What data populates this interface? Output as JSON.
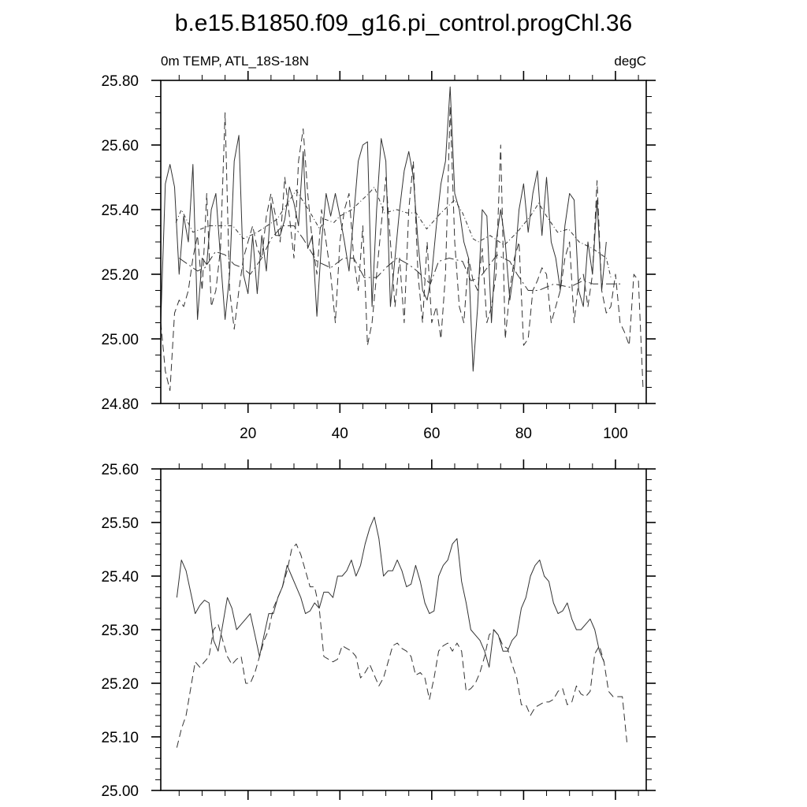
{
  "chart_data": [
    {
      "type": "line",
      "title": "b.e15.B1850.f09_g16.pi_control.progChl.36",
      "left_subtitle": "0m TEMP, ATL_18S-18N",
      "right_subtitle": "degC",
      "xlim": [
        1,
        106.7
      ],
      "ylim": [
        24.8,
        25.8
      ],
      "x_ticks": [
        20,
        40,
        60,
        80,
        100
      ],
      "x_tick_labels": [
        "20",
        "40",
        "60",
        "80",
        "100"
      ],
      "y_ticks": [
        24.8,
        25.0,
        25.2,
        25.4,
        25.6,
        25.8
      ],
      "y_tick_labels": [
        "24.80",
        "25.00",
        "25.20",
        "25.40",
        "25.60",
        "25.80"
      ],
      "series": [
        {
          "name": "solid",
          "style": "solid",
          "x_start": 1,
          "values": [
            25.05,
            25.48,
            25.54,
            25.47,
            25.2,
            25.38,
            25.3,
            25.54,
            25.06,
            25.25,
            25.23,
            25.4,
            25.45,
            25.25,
            25.06,
            25.2,
            25.55,
            25.63,
            25.2,
            25.14,
            25.32,
            25.14,
            25.32,
            25.21,
            25.42,
            25.32,
            25.32,
            25.37,
            25.47,
            25.42,
            25.35,
            25.58,
            25.28,
            25.32,
            25.07,
            25.3,
            25.45,
            25.38,
            25.45,
            25.38,
            25.3,
            25.21,
            25.38,
            25.55,
            25.6,
            25.61,
            25.1,
            25.4,
            25.62,
            25.55,
            25.1,
            25.25,
            25.4,
            25.52,
            25.58,
            25.5,
            25.3,
            25.15,
            25.12,
            25.2,
            25.35,
            25.48,
            25.55,
            25.78,
            25.45,
            25.4,
            25.3,
            25.25,
            24.9,
            25.1,
            25.4,
            25.38,
            25.05,
            25.3,
            25.4,
            25.3,
            25.12,
            25.22,
            25.4,
            25.48,
            25.33,
            25.45,
            25.52,
            25.32,
            25.5,
            25.3,
            25.25,
            25.15,
            25.35,
            25.45,
            25.43,
            25.15,
            25.1,
            25.3,
            25.2,
            25.43,
            25.15,
            25.3
          ]
        },
        {
          "name": "dashed",
          "style": "dashed",
          "x_start": 1,
          "values": [
            25.05,
            24.9,
            24.84,
            25.08,
            25.12,
            25.1,
            25.15,
            25.25,
            25.32,
            25.15,
            25.45,
            25.1,
            25.15,
            25.28,
            25.7,
            25.15,
            25.03,
            25.15,
            25.25,
            25.3,
            25.35,
            25.28,
            25.25,
            25.38,
            25.45,
            25.38,
            25.3,
            25.5,
            25.38,
            25.25,
            25.55,
            25.65,
            25.45,
            25.3,
            25.2,
            25.4,
            25.3,
            25.2,
            25.05,
            25.3,
            25.4,
            25.45,
            25.25,
            25.15,
            25.35,
            24.98,
            25.05,
            25.2,
            25.35,
            25.5,
            25.3,
            25.1,
            25.25,
            25.05,
            25.4,
            25.55,
            25.2,
            25.05,
            25.3,
            25.05,
            25.1,
            25.0,
            25.2,
            25.72,
            25.3,
            25.1,
            25.05,
            25.25,
            25.18,
            25.15,
            25.28,
            25.05,
            25.1,
            25.2,
            25.6,
            25.0,
            25.15,
            25.25,
            25.3,
            24.98,
            25.0,
            25.15,
            25.18,
            25.22,
            25.2,
            25.05,
            25.1,
            25.15,
            25.25,
            25.3,
            25.05,
            25.18,
            25.2,
            25.1,
            25.2,
            25.49,
            25.15,
            25.08,
            25.1,
            25.2,
            25.05,
            25.02,
            24.98,
            25.2,
            25.18,
            24.85
          ]
        },
        {
          "name": "dash-dot smooth",
          "style": "dashdot",
          "x": [
            4.3,
            5.5,
            8,
            11.5,
            16.7,
            19,
            22,
            26.3,
            30.5,
            34,
            35.6,
            36.8,
            38.7,
            40,
            42.6,
            46.3,
            47.5,
            49.7,
            52.4,
            54.6,
            56.6,
            58.9,
            62,
            65,
            66.7,
            69,
            70.1,
            72.7,
            75.8,
            78.6,
            81.5,
            83.3,
            85,
            87.4,
            89.8,
            92.1,
            95,
            98,
            99
          ],
          "values": [
            25.36,
            25.4,
            25.33,
            25.35,
            25.35,
            25.31,
            25.33,
            25.37,
            25.46,
            25.38,
            25.34,
            25.37,
            25.36,
            25.38,
            25.4,
            25.45,
            25.47,
            25.39,
            25.4,
            25.39,
            25.39,
            25.34,
            25.39,
            25.43,
            25.39,
            25.31,
            25.3,
            25.32,
            25.29,
            25.33,
            25.38,
            25.42,
            25.38,
            25.33,
            25.34,
            25.3,
            25.28,
            25.25,
            25.19
          ]
        },
        {
          "name": "long-dash smooth",
          "style": "longdash",
          "x": [
            5,
            9,
            10.6,
            12.9,
            15,
            17,
            18.8,
            20.5,
            23,
            25,
            27.5,
            30,
            32,
            35,
            38,
            40.8,
            43,
            45.3,
            48,
            50,
            52.5,
            55,
            56.8,
            59.7,
            61.5,
            63.8,
            66.7,
            68.5,
            70.5,
            74.2,
            77,
            78.6,
            81,
            83.3,
            86.6,
            90,
            92.9,
            95.2,
            98.6,
            101.5
          ],
          "values": [
            25.25,
            25.21,
            25.22,
            25.27,
            25.26,
            25.23,
            25.22,
            25.2,
            25.25,
            25.31,
            25.35,
            25.35,
            25.31,
            25.24,
            25.22,
            25.25,
            25.25,
            25.19,
            25.19,
            25.22,
            25.25,
            25.23,
            25.21,
            25.17,
            25.24,
            25.25,
            25.24,
            25.18,
            25.19,
            25.26,
            25.24,
            25.2,
            25.15,
            25.15,
            25.17,
            25.16,
            25.18,
            25.17,
            25.17,
            25.17
          ]
        }
      ]
    },
    {
      "type": "line",
      "xlim": [
        1,
        106.7
      ],
      "ylim": [
        25.0,
        25.6
      ],
      "x_ticks": [
        20,
        40,
        60,
        80,
        100
      ],
      "y_ticks": [
        25.0,
        25.1,
        25.2,
        25.3,
        25.4,
        25.5,
        25.6
      ],
      "y_tick_labels": [
        "25.00",
        "25.10",
        "25.20",
        "25.30",
        "25.40",
        "25.50",
        "25.60"
      ],
      "series": [
        {
          "name": "solid",
          "style": "solid",
          "x_start": 4.5,
          "values": [
            25.36,
            25.43,
            25.41,
            25.37,
            25.33,
            25.345,
            25.355,
            25.35,
            25.28,
            25.26,
            25.31,
            25.36,
            25.34,
            25.3,
            25.31,
            25.32,
            25.33,
            25.29,
            25.25,
            25.29,
            25.33,
            25.33,
            25.36,
            25.38,
            25.42,
            25.4,
            25.38,
            25.36,
            25.33,
            25.335,
            25.35,
            25.34,
            25.37,
            25.37,
            25.36,
            25.4,
            25.4,
            25.41,
            25.43,
            25.4,
            25.42,
            25.46,
            25.49,
            25.51,
            25.47,
            25.4,
            25.41,
            25.41,
            25.43,
            25.41,
            25.38,
            25.385,
            25.42,
            25.39,
            25.35,
            25.33,
            25.335,
            25.4,
            25.42,
            25.43,
            25.46,
            25.47,
            25.39,
            25.35,
            25.3,
            25.29,
            25.28,
            25.26,
            25.23,
            25.3,
            25.29,
            25.26,
            25.26,
            25.28,
            25.29,
            25.34,
            25.36,
            25.4,
            25.42,
            25.43,
            25.4,
            25.39,
            25.35,
            25.33,
            25.335,
            25.35,
            25.32,
            25.3,
            25.3,
            25.31,
            25.32,
            25.3,
            25.26,
            25.24
          ]
        },
        {
          "name": "dashed",
          "style": "dashed",
          "x_start": 4.5,
          "values": [
            25.08,
            25.115,
            25.14,
            25.19,
            25.24,
            25.23,
            25.24,
            25.25,
            25.3,
            25.31,
            25.28,
            25.25,
            25.235,
            25.245,
            25.25,
            25.2,
            25.2,
            25.22,
            25.25,
            25.28,
            25.3,
            25.34,
            25.36,
            25.38,
            25.41,
            25.45,
            25.46,
            25.44,
            25.41,
            25.38,
            25.38,
            25.34,
            25.25,
            25.245,
            25.24,
            25.245,
            25.27,
            25.265,
            25.26,
            25.25,
            25.21,
            25.22,
            25.235,
            25.215,
            25.195,
            25.21,
            25.24,
            25.27,
            25.275,
            25.265,
            25.26,
            25.25,
            25.215,
            25.22,
            25.21,
            25.17,
            25.21,
            25.26,
            25.27,
            25.275,
            25.26,
            25.275,
            25.26,
            25.185,
            25.19,
            25.2,
            25.22,
            25.25,
            25.29,
            25.3,
            25.29,
            25.27,
            25.265,
            25.235,
            25.21,
            25.16,
            25.16,
            25.14,
            25.155,
            25.16,
            25.165,
            25.165,
            25.17,
            25.185,
            25.19,
            25.16,
            25.165,
            25.195,
            25.18,
            25.175,
            25.185,
            25.255,
            25.27,
            25.24,
            25.185,
            25.175,
            25.175,
            25.175,
            25.09
          ]
        }
      ]
    }
  ]
}
